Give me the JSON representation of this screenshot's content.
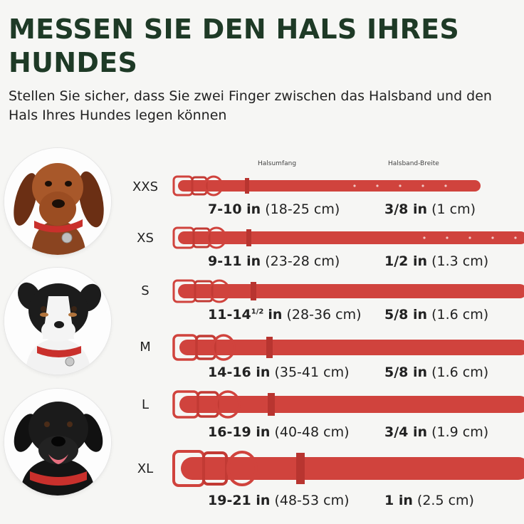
{
  "header": {
    "title": "MESSEN SIE DEN HALS IHRES HUNDES",
    "subtitle": "Stellen Sie sicher, dass Sie zwei Finger zwischen das Halsband und den Hals Ihres Hundes legen können"
  },
  "columns": {
    "neck": "Halsumfang",
    "width": "Halsband-Breite"
  },
  "colors": {
    "title": "#1e3a26",
    "collar": "#d0433d",
    "collar_dark": "#b83530"
  },
  "dogs": [
    {
      "name": "dachshund",
      "collar_color": "red"
    },
    {
      "name": "australian-shepherd",
      "collar_color": "red"
    },
    {
      "name": "black-labrador",
      "collar_color": "red"
    }
  ],
  "sizes": [
    {
      "label": "XXS",
      "neck_in": "7-10 in",
      "neck_cm": "(18-25 cm)",
      "width_in": "3/8 in",
      "width_cm": "(1 cm)"
    },
    {
      "label": "XS",
      "neck_in": "9-11 in",
      "neck_cm": "(23-28 cm)",
      "width_in": "1/2 in",
      "width_cm": "(1.3 cm)"
    },
    {
      "label": "S",
      "neck_in": "11-14",
      "neck_sup": "1/2",
      "neck_unit": "in",
      "neck_cm": "(28-36 cm)",
      "width_in": "5/8 in",
      "width_cm": "(1.6 cm)"
    },
    {
      "label": "M",
      "neck_in": "14-16 in",
      "neck_cm": "(35-41 cm)",
      "width_in": "5/8 in",
      "width_cm": "(1.6 cm)"
    },
    {
      "label": "L",
      "neck_in": "16-19 in",
      "neck_cm": "(40-48 cm)",
      "width_in": "3/4 in",
      "width_cm": "(1.9 cm)"
    },
    {
      "label": "XL",
      "neck_in": "19-21 in",
      "neck_cm": "(48-53 cm)",
      "width_in": "1 in",
      "width_cm": "(2.5 cm)"
    }
  ]
}
